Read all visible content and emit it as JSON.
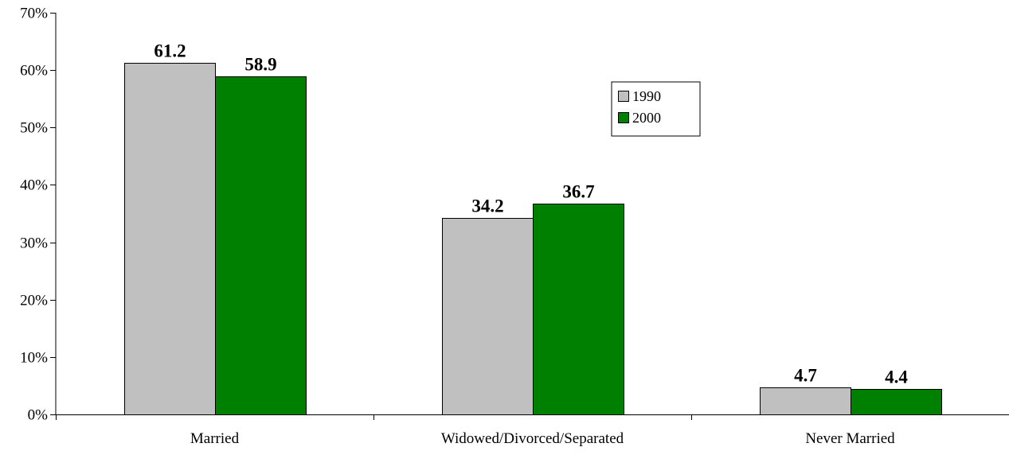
{
  "chart_data": {
    "type": "bar",
    "categories": [
      "Married",
      "Widowed/Divorced/Separated",
      "Never Married"
    ],
    "series": [
      {
        "name": "1990",
        "values": [
          61.2,
          34.2,
          4.7
        ],
        "color": "#c0c0c0",
        "labels": [
          "61.2",
          "34.2",
          "4.7"
        ]
      },
      {
        "name": "2000",
        "values": [
          58.9,
          36.7,
          4.4
        ],
        "color": "#008000",
        "labels": [
          "58.9",
          "36.7",
          "4.4"
        ]
      }
    ],
    "ylim": [
      0,
      70
    ],
    "yticks": [
      0,
      10,
      20,
      30,
      40,
      50,
      60,
      70
    ],
    "ytick_labels": [
      "0%",
      "10%",
      "20%",
      "30%",
      "40%",
      "50%",
      "60%",
      "70%"
    ],
    "title": "",
    "xlabel": "",
    "ylabel": "",
    "grid": false,
    "legend": "top-right"
  }
}
